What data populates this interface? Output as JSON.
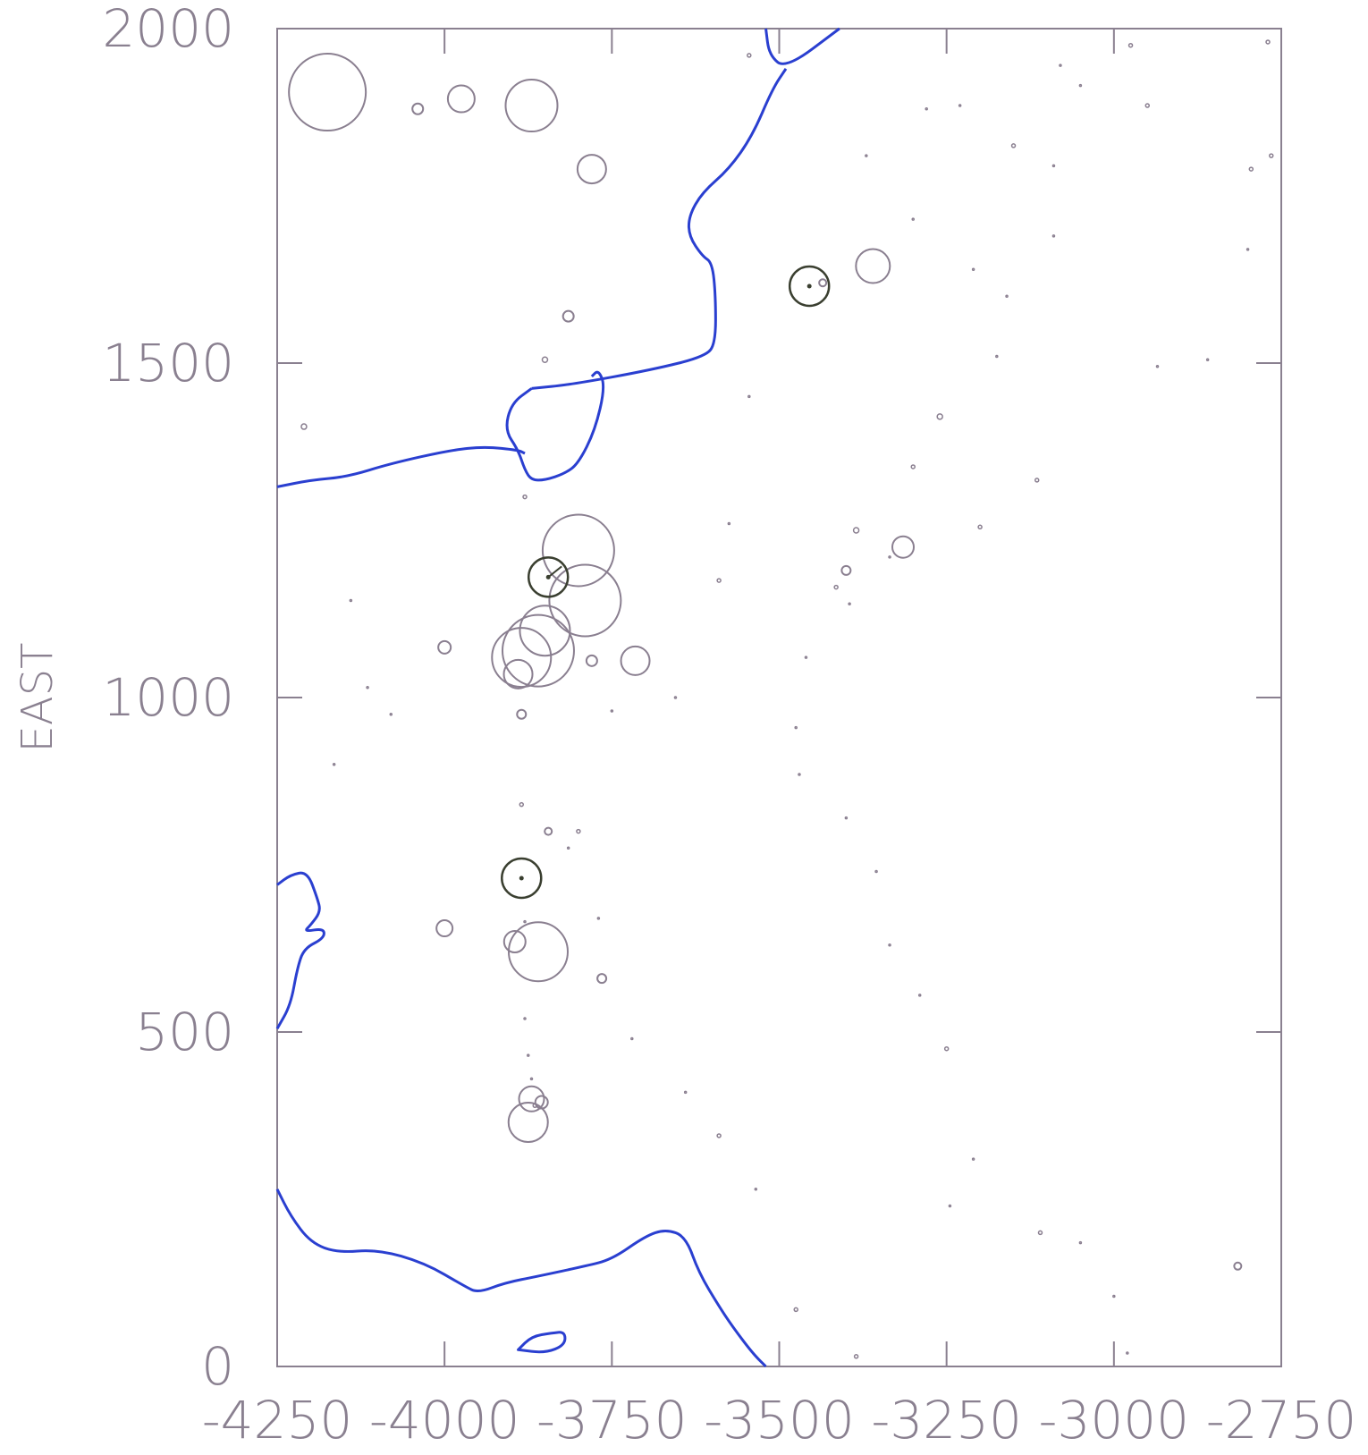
{
  "chart_data": {
    "type": "scatter",
    "title": "",
    "xlabel": "",
    "ylabel": "EAST",
    "xlim": [
      -4250,
      -2750
    ],
    "ylim": [
      0,
      2000
    ],
    "x_ticks": [
      -4250,
      -4000,
      -3750,
      -3500,
      -3250,
      -3000,
      -2750
    ],
    "x_tick_labels": [
      "-4250",
      "-4000",
      "-3750",
      "-3500",
      "-3250",
      "-3000",
      "-2750"
    ],
    "y_ticks": [
      0,
      500,
      1000,
      1500,
      2000
    ],
    "y_tick_labels": [
      "0",
      "500",
      "1000",
      "1500",
      "2000"
    ],
    "grid": false,
    "legend": "none",
    "colors": {
      "frame": "#8a8090",
      "contour": "#2a3fd0",
      "marker": "#8a7f90",
      "highlight": "#3a3f30"
    },
    "contours": [
      {
        "points": [
          [
            -3520,
            2000
          ],
          [
            -3515,
            1960
          ],
          [
            -3490,
            1940
          ],
          [
            -3410,
            2000
          ]
        ]
      },
      {
        "points": [
          [
            -3490,
            1940
          ],
          [
            -3510,
            1910
          ],
          [
            -3540,
            1840
          ],
          [
            -3575,
            1790
          ],
          [
            -3615,
            1755
          ],
          [
            -3635,
            1720
          ],
          [
            -3635,
            1690
          ],
          [
            -3615,
            1660
          ],
          [
            -3600,
            1650
          ],
          [
            -3595,
            1600
          ],
          [
            -3595,
            1530
          ],
          [
            -3610,
            1510
          ],
          [
            -3690,
            1490
          ],
          [
            -3810,
            1468
          ],
          [
            -3870,
            1462
          ]
        ]
      },
      {
        "points": [
          [
            -4250,
            1315
          ],
          [
            -4200,
            1325
          ],
          [
            -4145,
            1330
          ],
          [
            -4080,
            1350
          ],
          [
            -3990,
            1370
          ],
          [
            -3940,
            1375
          ],
          [
            -3890,
            1370
          ],
          [
            -3880,
            1365
          ]
        ]
      },
      {
        "points": [
          [
            -3870,
            1462
          ],
          [
            -3900,
            1440
          ],
          [
            -3910,
            1400
          ],
          [
            -3890,
            1370
          ],
          [
            -3880,
            1340
          ],
          [
            -3870,
            1325
          ],
          [
            -3850,
            1325
          ],
          [
            -3820,
            1335
          ],
          [
            -3800,
            1350
          ],
          [
            -3775,
            1400
          ],
          [
            -3760,
            1465
          ],
          [
            -3770,
            1490
          ],
          [
            -3780,
            1480
          ]
        ]
      },
      {
        "points": [
          [
            -4250,
            720
          ],
          [
            -4230,
            735
          ],
          [
            -4205,
            740
          ],
          [
            -4190,
            700
          ],
          [
            -4185,
            680
          ],
          [
            -4200,
            660
          ],
          [
            -4210,
            650
          ],
          [
            -4180,
            655
          ],
          [
            -4180,
            640
          ],
          [
            -4210,
            625
          ],
          [
            -4220,
            595
          ],
          [
            -4230,
            540
          ],
          [
            -4250,
            505
          ]
        ]
      },
      {
        "points": [
          [
            -4250,
            265
          ],
          [
            -4230,
            225
          ],
          [
            -4200,
            185
          ],
          [
            -4160,
            170
          ],
          [
            -4100,
            175
          ],
          [
            -4030,
            155
          ],
          [
            -3970,
            120
          ],
          [
            -3950,
            110
          ],
          [
            -3910,
            125
          ],
          [
            -3860,
            135
          ],
          [
            -3790,
            150
          ],
          [
            -3750,
            160
          ],
          [
            -3700,
            195
          ],
          [
            -3670,
            205
          ],
          [
            -3640,
            195
          ],
          [
            -3620,
            140
          ],
          [
            -3590,
            90
          ],
          [
            -3570,
            60
          ],
          [
            -3540,
            20
          ],
          [
            -3520,
            0
          ]
        ]
      },
      {
        "points": [
          [
            -3890,
            25
          ],
          [
            -3870,
            45
          ],
          [
            -3840,
            50
          ],
          [
            -3820,
            52
          ],
          [
            -3820,
            32
          ],
          [
            -3850,
            20
          ],
          [
            -3890,
            25
          ]
        ],
        "closed": true
      }
    ],
    "points": [
      {
        "x": -4175,
        "y": 1905,
        "r": 43
      },
      {
        "x": -4040,
        "y": 1880,
        "r": 6
      },
      {
        "x": -3975,
        "y": 1895,
        "r": 15
      },
      {
        "x": -3870,
        "y": 1885,
        "r": 29
      },
      {
        "x": -3780,
        "y": 1790,
        "r": 16
      },
      {
        "x": -3545,
        "y": 1960,
        "r": 2
      },
      {
        "x": -3280,
        "y": 1880,
        "r": 1
      },
      {
        "x": -3230,
        "y": 1885,
        "r": 1
      },
      {
        "x": -3150,
        "y": 1825,
        "r": 2
      },
      {
        "x": -3080,
        "y": 1945,
        "r": 1
      },
      {
        "x": -3050,
        "y": 1915,
        "r": 1
      },
      {
        "x": -2975,
        "y": 1975,
        "r": 2
      },
      {
        "x": -2950,
        "y": 1885,
        "r": 2
      },
      {
        "x": -3090,
        "y": 1795,
        "r": 1
      },
      {
        "x": -2795,
        "y": 1790,
        "r": 2
      },
      {
        "x": -2770,
        "y": 1980,
        "r": 2
      },
      {
        "x": -2765,
        "y": 1810,
        "r": 2
      },
      {
        "x": -3370,
        "y": 1810,
        "r": 1
      },
      {
        "x": -3300,
        "y": 1715,
        "r": 1
      },
      {
        "x": -3090,
        "y": 1690,
        "r": 1
      },
      {
        "x": -2800,
        "y": 1670,
        "r": 1
      },
      {
        "x": -3210,
        "y": 1640,
        "r": 1
      },
      {
        "x": -3360,
        "y": 1645,
        "r": 19
      },
      {
        "x": -3435,
        "y": 1620,
        "r": 4
      },
      {
        "x": -3160,
        "y": 1600,
        "r": 1
      },
      {
        "x": -3175,
        "y": 1510,
        "r": 1
      },
      {
        "x": -2935,
        "y": 1495,
        "r": 1
      },
      {
        "x": -2860,
        "y": 1505,
        "r": 1
      },
      {
        "x": -3815,
        "y": 1570,
        "r": 6
      },
      {
        "x": -3850,
        "y": 1505,
        "r": 3
      },
      {
        "x": -4210,
        "y": 1405,
        "r": 3
      },
      {
        "x": -3545,
        "y": 1450,
        "r": 1
      },
      {
        "x": -3260,
        "y": 1420,
        "r": 3
      },
      {
        "x": -3300,
        "y": 1345,
        "r": 2
      },
      {
        "x": -3115,
        "y": 1325,
        "r": 2
      },
      {
        "x": -3880,
        "y": 1300,
        "r": 2
      },
      {
        "x": -3575,
        "y": 1260,
        "r": 1
      },
      {
        "x": -3385,
        "y": 1250,
        "r": 3
      },
      {
        "x": -3200,
        "y": 1255,
        "r": 2
      },
      {
        "x": -3315,
        "y": 1225,
        "r": 12
      },
      {
        "x": -3400,
        "y": 1190,
        "r": 5
      },
      {
        "x": -3415,
        "y": 1165,
        "r": 2
      },
      {
        "x": -3590,
        "y": 1175,
        "r": 2
      },
      {
        "x": -3800,
        "y": 1220,
        "r": 40
      },
      {
        "x": -3790,
        "y": 1145,
        "r": 40
      },
      {
        "x": -3850,
        "y": 1100,
        "r": 28
      },
      {
        "x": -3860,
        "y": 1070,
        "r": 40
      },
      {
        "x": -3885,
        "y": 1060,
        "r": 33
      },
      {
        "x": -3890,
        "y": 1035,
        "r": 16
      },
      {
        "x": -4000,
        "y": 1075,
        "r": 7
      },
      {
        "x": -4140,
        "y": 1145,
        "r": 1
      },
      {
        "x": -4115,
        "y": 1015,
        "r": 1
      },
      {
        "x": -4080,
        "y": 975,
        "r": 1
      },
      {
        "x": -4165,
        "y": 900,
        "r": 1
      },
      {
        "x": -3885,
        "y": 975,
        "r": 5
      },
      {
        "x": -3750,
        "y": 980,
        "r": 1
      },
      {
        "x": -3655,
        "y": 1000,
        "r": 1
      },
      {
        "x": -3780,
        "y": 1055,
        "r": 6
      },
      {
        "x": -3715,
        "y": 1055,
        "r": 16
      },
      {
        "x": -3460,
        "y": 1060,
        "r": 1
      },
      {
        "x": -3475,
        "y": 955,
        "r": 1
      },
      {
        "x": -3470,
        "y": 885,
        "r": 1
      },
      {
        "x": -3400,
        "y": 820,
        "r": 1
      },
      {
        "x": -3885,
        "y": 840,
        "r": 2
      },
      {
        "x": -3845,
        "y": 800,
        "r": 4
      },
      {
        "x": -3800,
        "y": 800,
        "r": 2
      },
      {
        "x": -3815,
        "y": 775,
        "r": 1
      },
      {
        "x": -3355,
        "y": 740,
        "r": 1
      },
      {
        "x": -3770,
        "y": 670,
        "r": 1
      },
      {
        "x": -3880,
        "y": 665,
        "r": 1
      },
      {
        "x": -4000,
        "y": 655,
        "r": 9
      },
      {
        "x": -3860,
        "y": 620,
        "r": 33
      },
      {
        "x": -3895,
        "y": 635,
        "r": 12
      },
      {
        "x": -3765,
        "y": 580,
        "r": 5
      },
      {
        "x": -3335,
        "y": 630,
        "r": 1
      },
      {
        "x": -3290,
        "y": 555,
        "r": 1
      },
      {
        "x": -3250,
        "y": 475,
        "r": 2
      },
      {
        "x": -3880,
        "y": 520,
        "r": 1
      },
      {
        "x": -3720,
        "y": 490,
        "r": 1
      },
      {
        "x": -3875,
        "y": 465,
        "r": 1
      },
      {
        "x": -3870,
        "y": 430,
        "r": 1
      },
      {
        "x": -3865,
        "y": 390,
        "r": 2
      },
      {
        "x": -3875,
        "y": 365,
        "r": 22
      },
      {
        "x": -3870,
        "y": 400,
        "r": 14
      },
      {
        "x": -3855,
        "y": 395,
        "r": 7
      },
      {
        "x": -3640,
        "y": 410,
        "r": 1
      },
      {
        "x": -3590,
        "y": 345,
        "r": 2
      },
      {
        "x": -3535,
        "y": 265,
        "r": 1
      },
      {
        "x": -3210,
        "y": 310,
        "r": 1
      },
      {
        "x": -3245,
        "y": 240,
        "r": 1
      },
      {
        "x": -3110,
        "y": 200,
        "r": 2
      },
      {
        "x": -3050,
        "y": 185,
        "r": 1
      },
      {
        "x": -3000,
        "y": 105,
        "r": 1
      },
      {
        "x": -2815,
        "y": 150,
        "r": 4
      },
      {
        "x": -3475,
        "y": 85,
        "r": 2
      },
      {
        "x": -3385,
        "y": 15,
        "r": 2
      },
      {
        "x": -2980,
        "y": 20,
        "r": 1
      },
      {
        "x": -3395,
        "y": 1140,
        "r": 1
      },
      {
        "x": -3335,
        "y": 1210,
        "r": 1
      }
    ],
    "highlighted_points": [
      {
        "x": -3455,
        "y": 1615,
        "r": 22,
        "arrow": [
          0,
          0
        ]
      },
      {
        "x": -3845,
        "y": 1180,
        "r": 22,
        "arrow": [
          15,
          12
        ]
      },
      {
        "x": -3885,
        "y": 730,
        "r": 22,
        "arrow": [
          0,
          0
        ]
      }
    ]
  }
}
